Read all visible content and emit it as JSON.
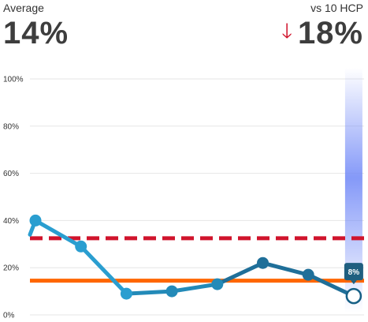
{
  "summary": {
    "average_label": "Average",
    "average_value": "14%",
    "compare_label": "vs 10 HCP",
    "compare_value": "18%",
    "compare_direction": "down",
    "compare_color": "#d0142c"
  },
  "chart_data": {
    "type": "line",
    "ylim": [
      0,
      100
    ],
    "yticks": [
      "0%",
      "20%",
      "40%",
      "60%",
      "80%",
      "100%"
    ],
    "grid": true,
    "series": [
      {
        "values": [
          40,
          29,
          9,
          10,
          13,
          22,
          17,
          8
        ],
        "color": "#1f6f99",
        "lead_in": 34
      }
    ],
    "reference_lines": [
      {
        "value": 14.5,
        "style": "solid",
        "color": "#ff6600"
      },
      {
        "value": 32.5,
        "style": "dashed",
        "color": "#d0142c"
      }
    ],
    "highlight": {
      "index": 7,
      "label": "8%"
    }
  }
}
